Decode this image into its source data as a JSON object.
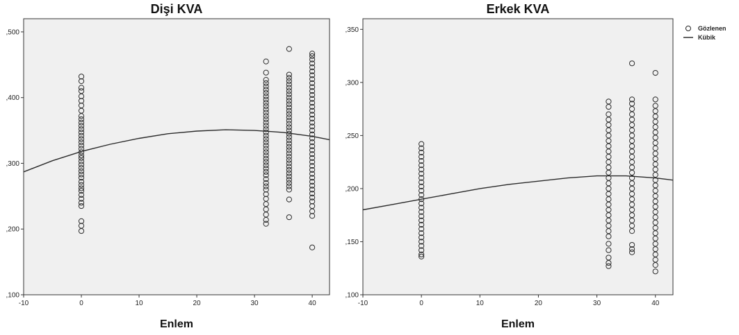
{
  "legend": {
    "observed": "Gözlenen",
    "cubic": "Kübik"
  },
  "chart_data": [
    {
      "type": "scatter",
      "title": "Dişi KVA",
      "xlabel": "Enlem",
      "ylabel": "",
      "xlim": [
        -10,
        43
      ],
      "ylim": [
        0.1,
        0.52
      ],
      "xticks": [
        -10,
        0,
        10,
        20,
        30,
        40
      ],
      "xtick_labels": [
        "-10",
        "0",
        "10",
        "20",
        "30",
        "40"
      ],
      "yticks": [
        0.1,
        0.2,
        0.3,
        0.4,
        0.5
      ],
      "ytick_labels": [
        ",100",
        ",200",
        ",300",
        ",400",
        ",500"
      ],
      "series": [
        {
          "name": "Gözlenen",
          "kind": "points",
          "groups": [
            {
              "x": 0,
              "y": [
                0.197,
                0.205,
                0.212,
                0.235,
                0.24,
                0.246,
                0.252,
                0.258,
                0.262,
                0.267,
                0.272,
                0.278,
                0.283,
                0.288,
                0.293,
                0.298,
                0.303,
                0.308,
                0.312,
                0.317,
                0.322,
                0.327,
                0.332,
                0.337,
                0.342,
                0.347,
                0.352,
                0.357,
                0.362,
                0.367,
                0.372,
                0.38,
                0.388,
                0.395,
                0.402,
                0.41,
                0.415,
                0.425,
                0.432
              ]
            },
            {
              "x": 32,
              "y": [
                0.208,
                0.214,
                0.222,
                0.23,
                0.238,
                0.246,
                0.253,
                0.26,
                0.265,
                0.27,
                0.276,
                0.282,
                0.287,
                0.292,
                0.297,
                0.302,
                0.307,
                0.312,
                0.317,
                0.322,
                0.327,
                0.332,
                0.337,
                0.342,
                0.347,
                0.352,
                0.357,
                0.362,
                0.367,
                0.372,
                0.377,
                0.382,
                0.387,
                0.392,
                0.397,
                0.402,
                0.407,
                0.412,
                0.417,
                0.422,
                0.427,
                0.438,
                0.455
              ]
            },
            {
              "x": 36,
              "y": [
                0.218,
                0.245,
                0.26,
                0.265,
                0.27,
                0.275,
                0.28,
                0.285,
                0.29,
                0.295,
                0.3,
                0.305,
                0.31,
                0.315,
                0.32,
                0.325,
                0.33,
                0.335,
                0.34,
                0.345,
                0.35,
                0.355,
                0.36,
                0.365,
                0.37,
                0.375,
                0.38,
                0.385,
                0.39,
                0.395,
                0.4,
                0.405,
                0.41,
                0.415,
                0.42,
                0.425,
                0.43,
                0.435,
                0.474
              ]
            },
            {
              "x": 40,
              "y": [
                0.172,
                0.22,
                0.227,
                0.235,
                0.242,
                0.248,
                0.254,
                0.26,
                0.266,
                0.272,
                0.278,
                0.284,
                0.29,
                0.296,
                0.302,
                0.308,
                0.314,
                0.32,
                0.326,
                0.332,
                0.338,
                0.344,
                0.35,
                0.356,
                0.362,
                0.368,
                0.374,
                0.38,
                0.386,
                0.392,
                0.398,
                0.404,
                0.41,
                0.416,
                0.422,
                0.428,
                0.434,
                0.44,
                0.446,
                0.452,
                0.458,
                0.463,
                0.467
              ]
            }
          ]
        },
        {
          "name": "Kübik",
          "kind": "curve",
          "x": [
            -10,
            -5,
            0,
            5,
            10,
            15,
            20,
            25,
            30,
            35,
            40,
            43
          ],
          "y": [
            0.287,
            0.304,
            0.318,
            0.329,
            0.338,
            0.345,
            0.349,
            0.351,
            0.35,
            0.347,
            0.341,
            0.336
          ]
        }
      ]
    },
    {
      "type": "scatter",
      "title": "Erkek KVA",
      "xlabel": "Enlem",
      "ylabel": "",
      "xlim": [
        -10,
        43
      ],
      "ylim": [
        0.1,
        0.36
      ],
      "xticks": [
        -10,
        0,
        10,
        20,
        30,
        40
      ],
      "xtick_labels": [
        "-10",
        "0",
        "10",
        "20",
        "30",
        "40"
      ],
      "yticks": [
        0.1,
        0.15,
        0.2,
        0.25,
        0.3,
        0.35
      ],
      "ytick_labels": [
        ",100",
        ",150",
        ",200",
        ",250",
        ",300",
        ",350"
      ],
      "series": [
        {
          "name": "Gözlenen",
          "kind": "points",
          "groups": [
            {
              "x": 0,
              "y": [
                0.136,
                0.138,
                0.142,
                0.146,
                0.15,
                0.154,
                0.158,
                0.162,
                0.166,
                0.17,
                0.174,
                0.178,
                0.182,
                0.186,
                0.19,
                0.194,
                0.198,
                0.202,
                0.206,
                0.21,
                0.214,
                0.218,
                0.222,
                0.226,
                0.23,
                0.234,
                0.238,
                0.242
              ]
            },
            {
              "x": 32,
              "y": [
                0.127,
                0.13,
                0.135,
                0.142,
                0.148,
                0.155,
                0.16,
                0.165,
                0.17,
                0.175,
                0.18,
                0.185,
                0.19,
                0.195,
                0.2,
                0.205,
                0.21,
                0.215,
                0.22,
                0.225,
                0.23,
                0.235,
                0.24,
                0.245,
                0.25,
                0.255,
                0.26,
                0.265,
                0.27,
                0.277,
                0.282
              ]
            },
            {
              "x": 36,
              "y": [
                0.14,
                0.143,
                0.147,
                0.16,
                0.165,
                0.17,
                0.175,
                0.18,
                0.185,
                0.19,
                0.195,
                0.2,
                0.205,
                0.21,
                0.215,
                0.22,
                0.225,
                0.23,
                0.235,
                0.24,
                0.245,
                0.25,
                0.255,
                0.26,
                0.265,
                0.27,
                0.275,
                0.28,
                0.284,
                0.318
              ]
            },
            {
              "x": 40,
              "y": [
                0.122,
                0.128,
                0.133,
                0.138,
                0.143,
                0.148,
                0.153,
                0.158,
                0.163,
                0.168,
                0.173,
                0.178,
                0.183,
                0.188,
                0.193,
                0.198,
                0.203,
                0.208,
                0.213,
                0.218,
                0.223,
                0.228,
                0.233,
                0.238,
                0.243,
                0.248,
                0.253,
                0.258,
                0.263,
                0.268,
                0.273,
                0.278,
                0.284,
                0.309
              ]
            }
          ]
        },
        {
          "name": "Kübik",
          "kind": "curve",
          "x": [
            -10,
            -5,
            0,
            5,
            10,
            15,
            20,
            25,
            30,
            35,
            40,
            43
          ],
          "y": [
            0.18,
            0.185,
            0.19,
            0.195,
            0.2,
            0.204,
            0.207,
            0.21,
            0.212,
            0.212,
            0.21,
            0.208
          ]
        }
      ]
    }
  ]
}
